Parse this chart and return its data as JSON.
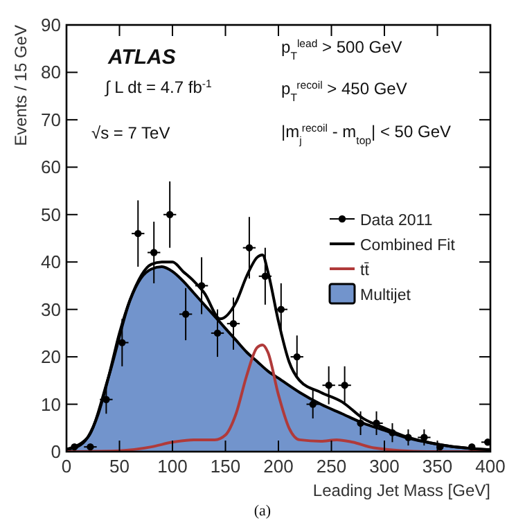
{
  "chart_data": {
    "type": "line",
    "xlabel": "Leading Jet Mass [GeV]",
    "ylabel": "Events / 15 GeV",
    "xlim": [
      0,
      400
    ],
    "xticks": [
      0,
      50,
      100,
      150,
      200,
      250,
      300,
      350,
      400
    ],
    "ylim": [
      0,
      90
    ],
    "yticks": [
      0,
      10,
      20,
      30,
      40,
      50,
      60,
      70,
      80,
      90
    ],
    "legend": "right",
    "grid": false,
    "annotations": [
      "ATLAS",
      "∫ L dt = 4.7 fb$^{-1}$",
      "√s = 7 TeV",
      "p$_{T}$$^{lead}$ > 500 GeV",
      "p$_{T}$$^{recoil}$ > 450 GeV",
      "|m$_{j}$$^{recoil}$ - m$_{top}$| < 50 GeV",
      "(a)"
    ],
    "series": [
      {
        "name": "Multijet",
        "type": "area",
        "color": "#7294cc",
        "x": [
          0,
          10,
          20,
          30,
          40,
          50,
          60,
          70,
          80,
          90,
          100,
          110,
          120,
          130,
          140,
          150,
          160,
          170,
          180,
          190,
          200,
          220,
          240,
          260,
          280,
          300,
          320,
          340,
          360,
          380,
          400
        ],
        "values": [
          0.5,
          1,
          3,
          8,
          16,
          25,
          32,
          36.5,
          38.5,
          39,
          38,
          36,
          33.5,
          31,
          28.5,
          26,
          23.5,
          21,
          19,
          17,
          15.5,
          12.5,
          10,
          8,
          6,
          4.5,
          3,
          2,
          1.2,
          0.7,
          0.4
        ]
      },
      {
        "name": "tt̄",
        "color": "#b03a3a",
        "x": [
          0,
          50,
          80,
          100,
          120,
          140,
          150,
          160,
          170,
          180,
          185,
          190,
          200,
          210,
          220,
          240,
          255,
          270,
          290,
          340,
          400
        ],
        "values": [
          0,
          0.2,
          1,
          2,
          2.5,
          2.5,
          3.5,
          8,
          16,
          22,
          22.5,
          21,
          12,
          5,
          2.5,
          2.2,
          2.5,
          2,
          0.8,
          0,
          0
        ]
      },
      {
        "name": "Combined Fit",
        "color": "#000000",
        "x": [
          0,
          20,
          40,
          60,
          80,
          90,
          100,
          110,
          120,
          130,
          145,
          160,
          170,
          180,
          185,
          190,
          200,
          210,
          220,
          240,
          260,
          280,
          300,
          320,
          340,
          360,
          380,
          400
        ],
        "values": [
          0.5,
          3,
          16,
          32,
          39.5,
          40,
          40,
          38,
          36,
          33.5,
          28,
          31.5,
          37,
          41,
          41.5,
          38,
          27.5,
          19,
          15,
          12.5,
          10.5,
          7,
          5,
          3.2,
          2,
          1.2,
          0.7,
          0.4
        ]
      },
      {
        "name": "Data 2011",
        "type": "scatter",
        "color": "#000000",
        "marker": "circle",
        "x": [
          7.5,
          22.5,
          37.5,
          52.5,
          67.5,
          82.5,
          97.5,
          112.5,
          127.5,
          142.5,
          157.5,
          172.5,
          187.5,
          202.5,
          217.5,
          232.5,
          247.5,
          262.5,
          277.5,
          292.5,
          307.5,
          322.5,
          337.5,
          352.5,
          382.5,
          397.5
        ],
        "values": [
          1,
          1,
          11,
          23,
          46,
          42,
          50,
          29,
          35,
          25,
          27,
          43,
          37,
          30,
          20,
          10,
          14,
          14,
          6,
          6,
          4,
          3,
          3,
          1,
          1,
          2
        ],
        "errors": [
          null,
          null,
          3,
          5,
          7,
          6.5,
          7,
          5.5,
          6,
          5,
          5.5,
          6.5,
          6,
          5.5,
          4.5,
          3,
          4,
          4,
          2.5,
          2.5,
          2,
          1.7,
          1.7,
          null,
          null,
          null
        ],
        "xerrors": [
          null,
          6,
          6,
          6,
          6,
          6,
          6,
          6,
          6,
          6,
          6,
          6,
          6,
          6,
          6,
          6,
          6,
          6,
          null,
          6,
          null,
          null,
          6,
          null,
          null,
          6
        ]
      }
    ]
  }
}
